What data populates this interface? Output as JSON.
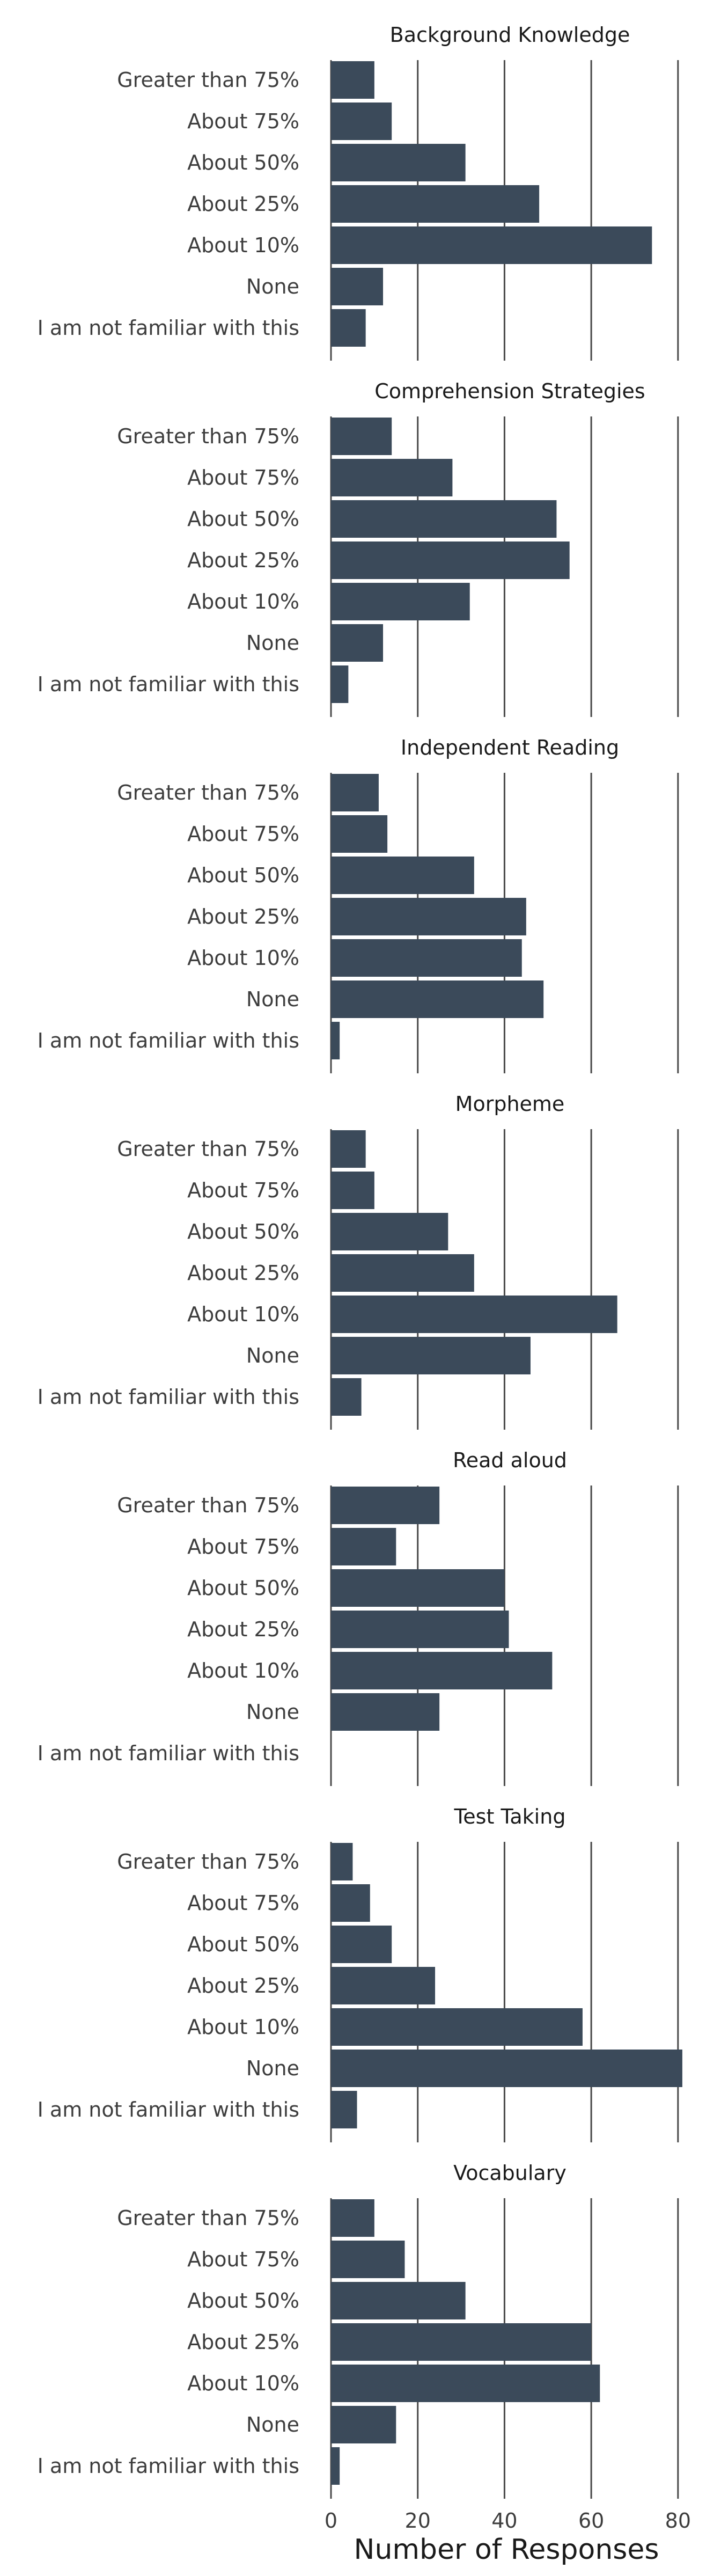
{
  "chart_data": {
    "type": "bar",
    "orientation": "horizontal",
    "categories": [
      "Greater than 75%",
      "About 75%",
      "About 50%",
      "About 25%",
      "About 10%",
      "None",
      "I am not familiar with this"
    ],
    "xlabel": "Number of Responses",
    "xlim": [
      0,
      82
    ],
    "xticks": [
      "0",
      "20",
      "40",
      "60",
      "80"
    ],
    "grid": "vertical",
    "bar_color": "#3b4a5a",
    "panels": [
      {
        "title": "Background Knowledge",
        "values": [
          10,
          14,
          31,
          48,
          74,
          12,
          8
        ]
      },
      {
        "title": "Comprehension Strategies",
        "values": [
          14,
          28,
          52,
          55,
          32,
          12,
          4
        ]
      },
      {
        "title": "Independent Reading",
        "values": [
          11,
          13,
          33,
          45,
          44,
          49,
          2
        ]
      },
      {
        "title": "Morpheme",
        "values": [
          8,
          10,
          27,
          33,
          66,
          46,
          7
        ]
      },
      {
        "title": "Read aloud",
        "values": [
          25,
          15,
          40,
          41,
          51,
          25,
          0
        ]
      },
      {
        "title": "Test Taking",
        "values": [
          5,
          9,
          14,
          24,
          58,
          81,
          6
        ]
      },
      {
        "title": "Vocabulary",
        "values": [
          10,
          17,
          31,
          60,
          62,
          15,
          2
        ]
      }
    ]
  }
}
